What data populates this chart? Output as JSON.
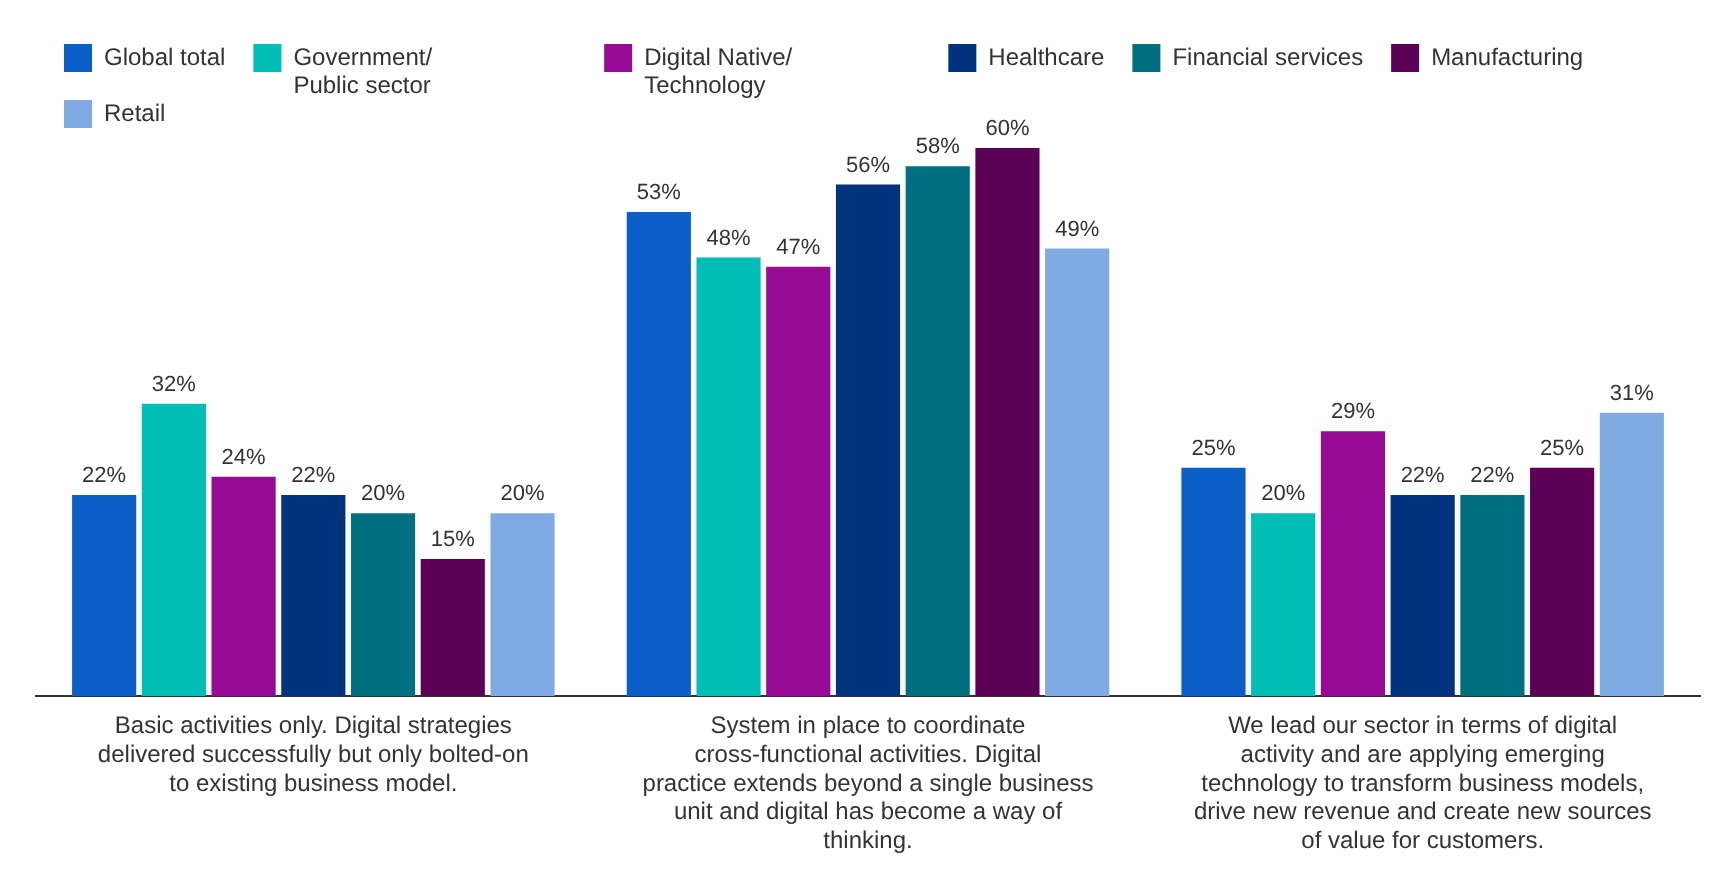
{
  "chart_data": {
    "type": "bar",
    "categories": [
      "Basic activities only. Digital strategies delivered successfully but only bolted-on to existing business model.",
      "System in place to coordinate cross-functional activities. Digital practice extends beyond a single business unit and digital has become a way of thinking.",
      "We lead our sector in terms of digital activity and are applying emerging technology to transform business models, drive new revenue and create new sources of value for customers."
    ],
    "series": [
      {
        "name": "Global total",
        "color": "#0a5fc8",
        "values": [
          22,
          53,
          25
        ],
        "value_labels": [
          "22%",
          "53%",
          "25%"
        ]
      },
      {
        "name": "Government/ Public sector",
        "color": "#00bdb6",
        "values": [
          32,
          48,
          20
        ],
        "value_labels": [
          "32%",
          "48%",
          "20%"
        ]
      },
      {
        "name": "Digital Native/ Technology",
        "color": "#960a94",
        "values": [
          24,
          47,
          29
        ],
        "value_labels": [
          "24%",
          "47%",
          "29%"
        ]
      },
      {
        "name": "Healthcare",
        "color": "#00337d",
        "values": [
          22,
          56,
          22
        ],
        "value_labels": [
          "22%",
          "56%",
          "22%"
        ]
      },
      {
        "name": "Financial services",
        "color": "#006f80",
        "values": [
          20,
          58,
          22
        ],
        "value_labels": [
          "20%",
          "58%",
          "22%"
        ]
      },
      {
        "name": "Manufacturing",
        "color": "#5c0056",
        "values": [
          15,
          60,
          25
        ],
        "value_labels": [
          "15%",
          "60%",
          "25%"
        ]
      },
      {
        "name": "Retail",
        "color": "#80abe2",
        "values": [
          20,
          49,
          31
        ],
        "value_labels": [
          "20%",
          "49%",
          "31%"
        ]
      }
    ],
    "legend": "top",
    "grid": false
  }
}
